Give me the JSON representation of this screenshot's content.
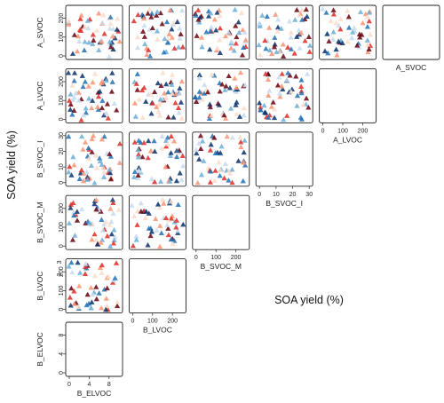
{
  "chart_data": {
    "type": "scatter",
    "layout": "pairwise-matrix",
    "axis_title_left": "SOA yield (%)",
    "axis_title_bottom": "SOA yield (%)",
    "marker": "triangle",
    "colormap": [
      "#08306b",
      "#2171b5",
      "#6baed6",
      "#c6dbef",
      "#fcdbc8",
      "#fc9272",
      "#de2d26",
      "#67000d"
    ],
    "variables": [
      {
        "name": "A_SVOC",
        "range": [
          0,
          250
        ],
        "ticks": [
          0,
          100,
          200
        ]
      },
      {
        "name": "A_LVOC",
        "range": [
          0,
          250
        ],
        "ticks": [
          0,
          100,
          200
        ]
      },
      {
        "name": "B_SVOC_I",
        "range": [
          0,
          30
        ],
        "ticks": [
          0,
          10,
          20,
          30
        ]
      },
      {
        "name": "B_SVOC_M",
        "range": [
          0,
          250
        ],
        "ticks": [
          0,
          100,
          200
        ]
      },
      {
        "name": "B_LVOC",
        "range": [
          0,
          250
        ],
        "ticks": [
          0,
          100,
          200
        ]
      },
      {
        "name": "B_ELVOC",
        "range": [
          0,
          10
        ],
        "ticks": [
          0,
          4,
          8
        ]
      }
    ],
    "extra_tick_text": {
      "B_LVOC_y": [
        "3",
        "2"
      ]
    },
    "points_per_panel": 50
  }
}
